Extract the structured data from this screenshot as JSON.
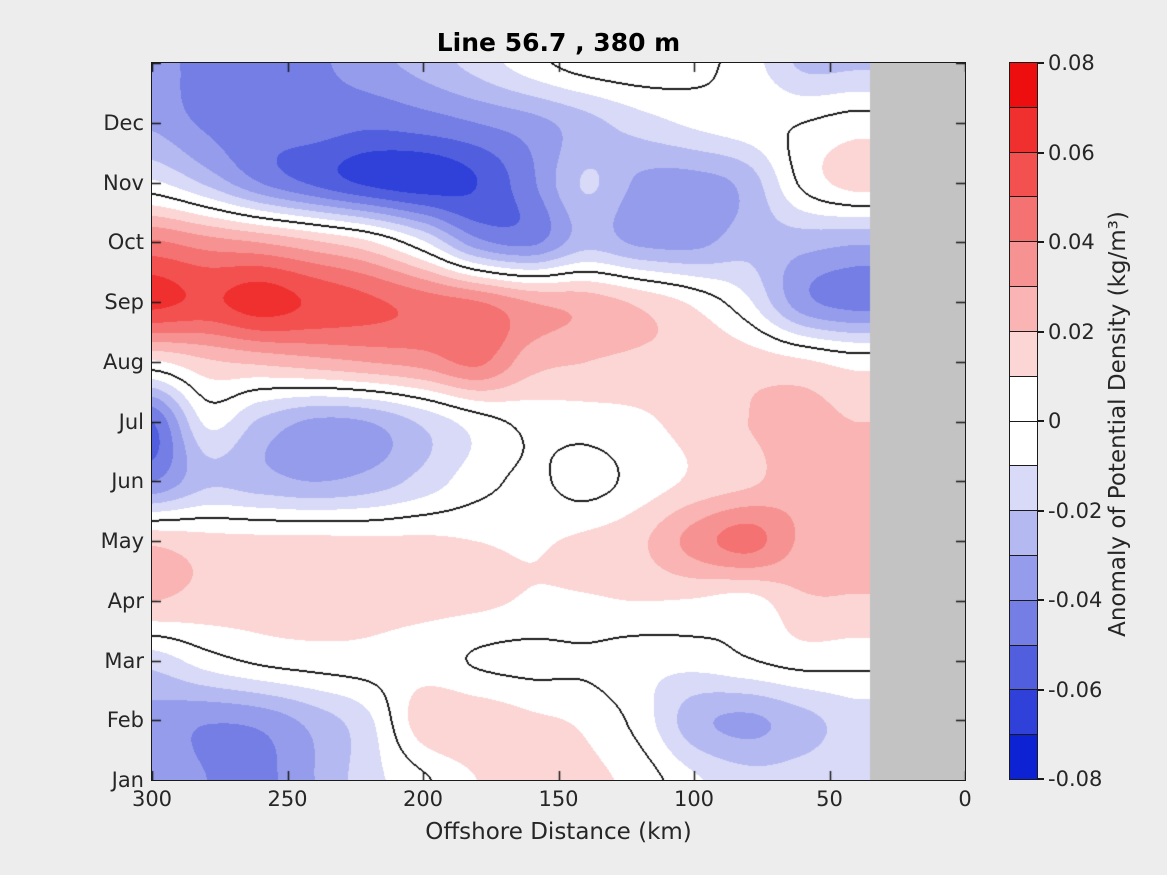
{
  "title": "Line 56.7 , 380 m",
  "xlabel": "Offshore Distance (km)",
  "axes": {
    "x_tick_labels": [
      "300",
      "250",
      "200",
      "150",
      "100",
      "50",
      "0"
    ],
    "y_tick_labels_top_to_bottom": [
      "Dec",
      "Nov",
      "Oct",
      "Sep",
      "Aug",
      "Jul",
      "Jun",
      "May",
      "Apr",
      "Mar",
      "Feb",
      "Jan"
    ]
  },
  "colorbar": {
    "label": "Anomaly of Potential Density (kg/m³)",
    "tick_labels_top_to_bottom": [
      "0.08",
      "0.06",
      "0.04",
      "0.02",
      "0",
      "-0.02",
      "-0.04",
      "-0.06",
      "-0.08"
    ],
    "segments_top_to_bottom": [
      "#ed0f0f",
      "#ef302f",
      "#f25150",
      "#f47271",
      "#f69392",
      "#f9b4b3",
      "#fbd6d5",
      "#ffffff",
      "#ffffff",
      "#d8daf7",
      "#b5b9f1",
      "#959ceb",
      "#747ee5",
      "#515fdf",
      "#2f41d9",
      "#0c22d3"
    ]
  },
  "colors": {
    "figure_background": "#ededee",
    "no_data_gray": "#c3c3c3",
    "contour_line": "#1a1a1a",
    "axis_edge": "#1a1a1a"
  },
  "chart_data": {
    "type": "heatmap",
    "title": "Line 56.7 , 380 m",
    "xlabel": "Offshore Distance (km)",
    "ylabel_categories_bottom_to_top": [
      "Jan",
      "Feb",
      "Mar",
      "Apr",
      "May",
      "Jun",
      "Jul",
      "Aug",
      "Sep",
      "Oct",
      "Nov",
      "Dec"
    ],
    "x_axis_range_km": [
      300,
      0
    ],
    "value_units": "kg/m3",
    "contour_level": 0,
    "fill_levels_step": 0.01,
    "fill_levels_range": [
      -0.08,
      0.08
    ],
    "no_data_region_km": [
      35,
      0
    ],
    "grid_x_km": [
      300,
      280,
      260,
      240,
      220,
      200,
      180,
      160,
      140,
      120,
      100,
      80,
      60,
      40
    ],
    "grid_rows_top_to_bottom": [
      "Jan (top wrap)",
      "Dec",
      "Nov",
      "Oct",
      "Sep",
      "Aug",
      "Jul",
      "Jun",
      "May",
      "Apr",
      "Mar",
      "Feb",
      "Jan"
    ],
    "values_top_to_bottom": [
      [
        -0.036,
        -0.044,
        -0.045,
        -0.042,
        -0.034,
        -0.026,
        -0.016,
        -0.004,
        0.005,
        0.007,
        0.003,
        -0.005,
        -0.022,
        -0.022
      ],
      [
        -0.032,
        -0.042,
        -0.046,
        -0.045,
        -0.048,
        -0.045,
        -0.04,
        -0.034,
        -0.024,
        -0.015,
        -0.008,
        -0.003,
        0.0,
        0.005
      ],
      [
        -0.008,
        -0.022,
        -0.04,
        -0.052,
        -0.062,
        -0.066,
        -0.06,
        -0.042,
        -0.019,
        -0.032,
        -0.034,
        -0.026,
        0.002,
        0.014
      ],
      [
        0.042,
        0.035,
        0.03,
        0.022,
        0.012,
        -0.008,
        -0.036,
        -0.042,
        -0.024,
        -0.032,
        -0.033,
        -0.024,
        -0.026,
        -0.029
      ],
      [
        0.063,
        0.058,
        0.065,
        0.058,
        0.052,
        0.046,
        0.041,
        0.03,
        0.026,
        0.018,
        0.008,
        -0.008,
        -0.036,
        -0.044
      ],
      [
        0.008,
        0.018,
        0.022,
        0.026,
        0.03,
        0.034,
        0.042,
        0.024,
        0.02,
        0.018,
        0.018,
        0.016,
        0.012,
        0.006
      ],
      [
        -0.05,
        -0.008,
        -0.022,
        -0.032,
        -0.03,
        -0.018,
        -0.005,
        0.003,
        0.005,
        0.008,
        0.014,
        0.02,
        0.024,
        0.02
      ],
      [
        -0.04,
        -0.022,
        -0.026,
        -0.03,
        -0.026,
        -0.016,
        -0.004,
        0.002,
        -0.004,
        0.004,
        0.012,
        0.018,
        0.026,
        0.024
      ],
      [
        0.018,
        0.014,
        0.013,
        0.013,
        0.012,
        0.012,
        0.01,
        0.009,
        0.012,
        0.018,
        0.034,
        0.044,
        0.028,
        0.022
      ],
      [
        0.02,
        0.016,
        0.014,
        0.014,
        0.013,
        0.013,
        0.012,
        0.009,
        0.009,
        0.01,
        0.009,
        0.006,
        0.018,
        0.019
      ],
      [
        -0.016,
        -0.005,
        0.002,
        0.005,
        0.006,
        0.005,
        -0.001,
        -0.003,
        -0.002,
        -0.006,
        -0.006,
        -0.001,
        0.004,
        0.003
      ],
      [
        -0.034,
        -0.039,
        -0.037,
        -0.026,
        -0.012,
        0.016,
        0.017,
        0.012,
        0.008,
        -0.004,
        -0.026,
        -0.032,
        -0.024,
        -0.015
      ],
      [
        -0.03,
        -0.04,
        -0.043,
        -0.03,
        -0.014,
        -0.002,
        0.01,
        0.015,
        0.013,
        0.006,
        -0.008,
        -0.016,
        -0.015,
        -0.011
      ]
    ]
  }
}
